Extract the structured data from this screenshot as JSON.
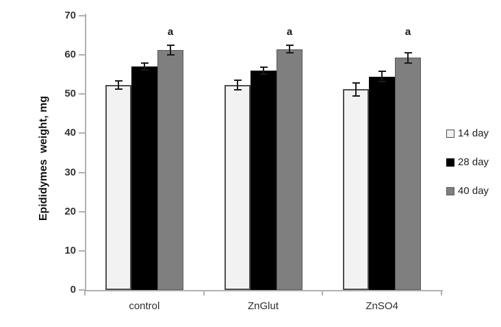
{
  "chart_data": {
    "type": "bar",
    "title": "",
    "ylabel": "Epididymes  weight, mg",
    "xlabel": "",
    "ylim": [
      0,
      70
    ],
    "yticks": [
      0,
      10,
      20,
      30,
      40,
      50,
      60,
      70
    ],
    "grid": false,
    "legend_position": "right",
    "categories": [
      "control",
      "ZnGlut",
      "ZnSO4"
    ],
    "series": [
      {
        "name": "14 day",
        "values": [
          52.3,
          52.3,
          51.2
        ],
        "errors": [
          1.0,
          1.2,
          1.6
        ],
        "fill": "#f2f2f2",
        "border": "#4d4d4d",
        "border_width": 2
      },
      {
        "name": "28 day",
        "values": [
          57.1,
          56.0,
          54.5
        ],
        "errors": [
          0.9,
          0.8,
          1.3
        ],
        "fill": "#000000",
        "border": "#000000",
        "border_width": 0
      },
      {
        "name": "40 day",
        "values": [
          61.2,
          61.5,
          59.3
        ],
        "errors": [
          1.2,
          1.0,
          1.3
        ],
        "fill": "#7f7f7f",
        "border": "#595959",
        "border_width": 1
      }
    ],
    "annotations": [
      {
        "text": "a",
        "category": "control",
        "series": "40 day"
      },
      {
        "text": "a",
        "category": "ZnGlut",
        "series": "40 day"
      },
      {
        "text": "a",
        "category": "ZnSO4",
        "series": "40 day"
      }
    ],
    "colors": {
      "axis": "#b0b0b0",
      "tick_text": "#333333",
      "category_text": "#2e2e2e",
      "error_bar": "#1a1a1a",
      "annotation_text": "#14141c"
    }
  }
}
